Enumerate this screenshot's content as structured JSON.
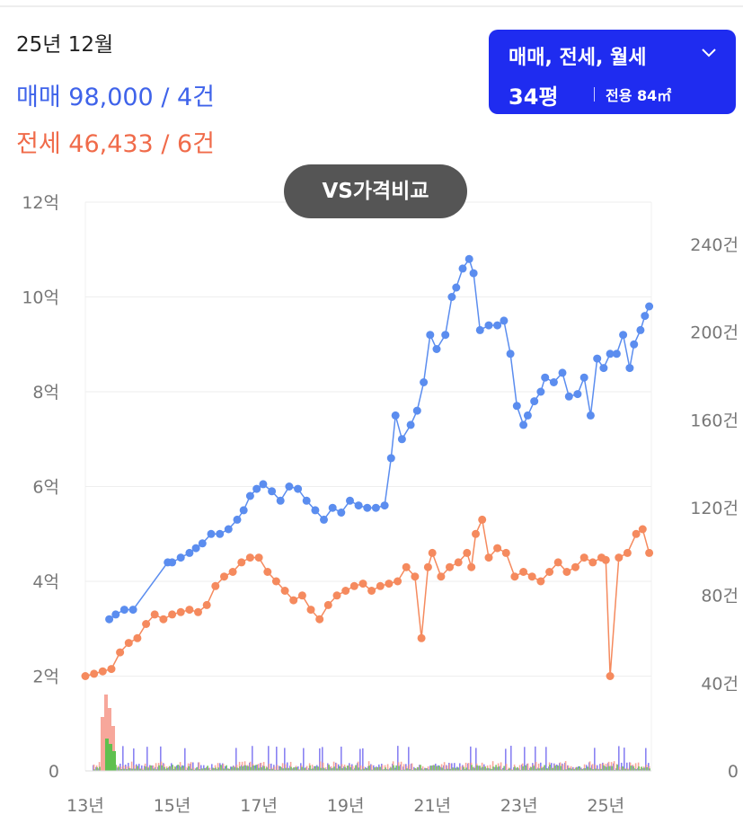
{
  "summary": {
    "month": "25년 12월",
    "sale_line": "매매 98,000 / 4건",
    "rent_line": "전세 46,433 / 6건"
  },
  "selector": {
    "type_label": "매매, 전세, 월세",
    "size_label": "34평",
    "area_label": "전용 84㎡"
  },
  "compare_button": {
    "label": "VS가격비교"
  },
  "colors": {
    "sale": "#5b8def",
    "rent": "#f58a5e",
    "sale_header": "#3f63ea",
    "rent_header": "#f06b4a",
    "volume_sale": "#8a83f2",
    "volume_rent": "#f7a79b",
    "volume_monthly": "#5fc04f",
    "selector_bg": "#1f2cf0"
  },
  "chart_data": {
    "type": "line",
    "x_ticks": [
      "13년",
      "15년",
      "17년",
      "19년",
      "21년",
      "23년",
      "25년"
    ],
    "x_tick_years": [
      2013,
      2015,
      2017,
      2019,
      2021,
      2023,
      2025
    ],
    "y_left": {
      "unit": "억",
      "ticks": [
        "0",
        "2억",
        "4억",
        "6억",
        "8억",
        "10억",
        "12억"
      ],
      "ylim": [
        0,
        12
      ]
    },
    "y_right": {
      "unit": "건",
      "ticks": [
        "0",
        "40건",
        "80건",
        "120건",
        "160건",
        "200건",
        "240건"
      ],
      "ylim": [
        0,
        240
      ]
    },
    "grid": true,
    "series": [
      {
        "name": "매매",
        "x": [
          2013.55,
          2013.7,
          2013.9,
          2014.1,
          2014.9,
          2015.0,
          2015.2,
          2015.4,
          2015.55,
          2015.7,
          2015.9,
          2016.1,
          2016.3,
          2016.5,
          2016.65,
          2016.8,
          2016.95,
          2017.1,
          2017.3,
          2017.5,
          2017.7,
          2017.9,
          2018.1,
          2018.3,
          2018.5,
          2018.7,
          2018.9,
          2019.1,
          2019.3,
          2019.5,
          2019.7,
          2019.9,
          2020.05,
          2020.15,
          2020.3,
          2020.5,
          2020.65,
          2020.8,
          2020.95,
          2021.1,
          2021.3,
          2021.45,
          2021.55,
          2021.7,
          2021.85,
          2021.95,
          2022.1,
          2022.3,
          2022.5,
          2022.65,
          2022.8,
          2022.95,
          2023.1,
          2023.2,
          2023.35,
          2023.5,
          2023.6,
          2023.8,
          2024.0,
          2024.15,
          2024.35,
          2024.5,
          2024.65,
          2024.8,
          2024.95,
          2025.1,
          2025.25,
          2025.4,
          2025.55,
          2025.65,
          2025.8,
          2025.9,
          2026.0
        ],
        "y": [
          3.2,
          3.3,
          3.4,
          3.4,
          4.4,
          4.4,
          4.5,
          4.6,
          4.7,
          4.8,
          5.0,
          5.0,
          5.1,
          5.3,
          5.5,
          5.8,
          5.95,
          6.05,
          5.9,
          5.7,
          6.0,
          5.95,
          5.7,
          5.5,
          5.3,
          5.55,
          5.45,
          5.7,
          5.6,
          5.55,
          5.55,
          5.6,
          6.6,
          7.5,
          7.0,
          7.3,
          7.6,
          8.2,
          9.2,
          8.9,
          9.2,
          10.0,
          10.2,
          10.6,
          10.8,
          10.5,
          9.3,
          9.4,
          9.4,
          9.5,
          8.8,
          7.7,
          7.3,
          7.5,
          7.8,
          8.0,
          8.3,
          8.2,
          8.4,
          7.9,
          7.95,
          8.3,
          7.5,
          8.7,
          8.5,
          8.8,
          8.8,
          9.2,
          8.5,
          9.0,
          9.3,
          9.6,
          9.8
        ]
      },
      {
        "name": "전세",
        "x": [
          2013.0,
          2013.2,
          2013.4,
          2013.6,
          2013.8,
          2014.0,
          2014.2,
          2014.4,
          2014.6,
          2014.8,
          2015.0,
          2015.2,
          2015.4,
          2015.6,
          2015.8,
          2016.0,
          2016.2,
          2016.4,
          2016.6,
          2016.8,
          2017.0,
          2017.2,
          2017.4,
          2017.6,
          2017.8,
          2018.0,
          2018.2,
          2018.4,
          2018.6,
          2018.8,
          2019.0,
          2019.2,
          2019.4,
          2019.6,
          2019.8,
          2020.0,
          2020.2,
          2020.4,
          2020.6,
          2020.75,
          2020.9,
          2021.0,
          2021.2,
          2021.4,
          2021.6,
          2021.8,
          2021.9,
          2022.0,
          2022.15,
          2022.3,
          2022.5,
          2022.7,
          2022.9,
          2023.1,
          2023.3,
          2023.5,
          2023.7,
          2023.9,
          2024.1,
          2024.3,
          2024.5,
          2024.7,
          2024.9,
          2025.0,
          2025.1,
          2025.3,
          2025.5,
          2025.7,
          2025.85,
          2026.0
        ],
        "y": [
          2.0,
          2.05,
          2.1,
          2.15,
          2.5,
          2.7,
          2.8,
          3.1,
          3.3,
          3.2,
          3.3,
          3.35,
          3.4,
          3.35,
          3.5,
          3.9,
          4.1,
          4.2,
          4.4,
          4.5,
          4.5,
          4.2,
          4.0,
          3.8,
          3.6,
          3.7,
          3.4,
          3.2,
          3.5,
          3.7,
          3.8,
          3.9,
          3.95,
          3.8,
          3.9,
          3.95,
          4.0,
          4.3,
          4.1,
          2.8,
          4.3,
          4.6,
          4.1,
          4.3,
          4.4,
          4.6,
          4.3,
          5.0,
          5.3,
          4.5,
          4.7,
          4.6,
          4.1,
          4.2,
          4.1,
          4.0,
          4.2,
          4.4,
          4.2,
          4.3,
          4.5,
          4.4,
          4.5,
          4.45,
          2.0,
          4.5,
          4.6,
          5.0,
          5.1,
          4.6
        ]
      }
    ]
  }
}
